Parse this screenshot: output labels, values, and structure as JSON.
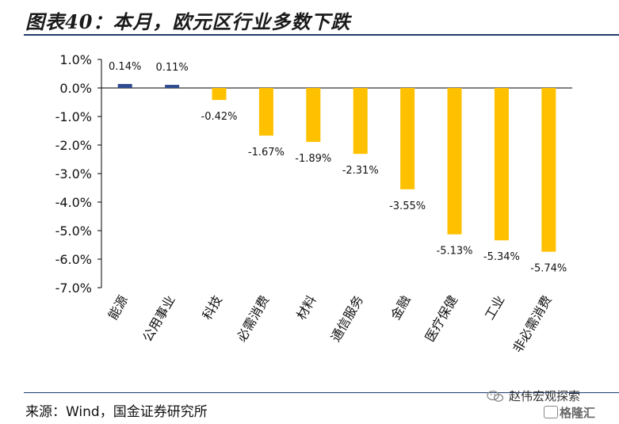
{
  "header": {
    "title": "图表40：本月，欧元区行业多数下跌"
  },
  "footer": {
    "source": "来源：Wind，国金证券研究所"
  },
  "watermark": {
    "line1": "赵伟宏观探索",
    "line2": "格隆汇"
  },
  "colors": {
    "positive_bar": "#2e4b8f",
    "negative_bar": "#ffc000",
    "rule": "#1f3b6e",
    "axis": "#000000"
  },
  "chart_data": {
    "type": "bar",
    "title": "",
    "xlabel": "",
    "ylabel": "",
    "categories": [
      "能源",
      "公用事业",
      "科技",
      "必需消费",
      "材料",
      "通信服务",
      "金融",
      "医疗保健",
      "工业",
      "非必需消费"
    ],
    "values": [
      0.14,
      0.11,
      -0.42,
      -1.67,
      -1.89,
      -2.31,
      -3.55,
      -5.13,
      -5.34,
      -5.74
    ],
    "value_labels": [
      "0.14%",
      "0.11%",
      "-0.42%",
      "-1.67%",
      "-1.89%",
      "-2.31%",
      "-3.55%",
      "-5.13%",
      "-5.34%",
      "-5.74%"
    ],
    "ylim": [
      -7.0,
      1.0
    ],
    "yticks": [
      1.0,
      0.0,
      -1.0,
      -2.0,
      -3.0,
      -4.0,
      -5.0,
      -6.0,
      -7.0
    ],
    "ytick_labels": [
      "1.0%",
      "0.0%",
      "-1.0%",
      "-2.0%",
      "-3.0%",
      "-4.0%",
      "-5.0%",
      "-6.0%",
      "-7.0%"
    ],
    "grid": false,
    "legend": "none"
  }
}
